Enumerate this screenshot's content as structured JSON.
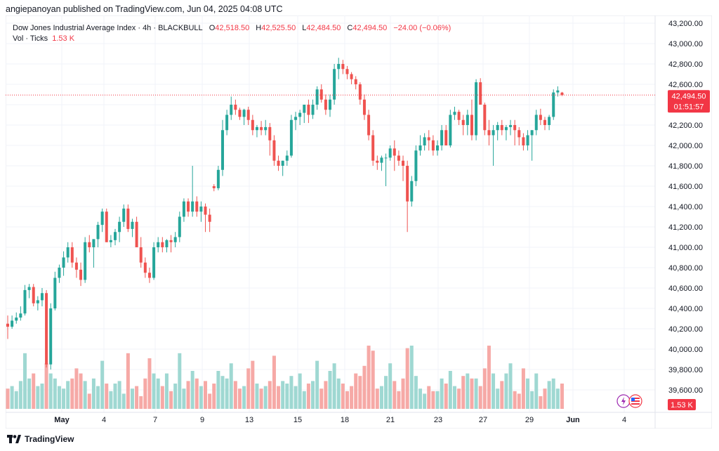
{
  "header": {
    "text": "angiepanoyan published on TradingView.com, Jun 04, 2025 04:08 UTC"
  },
  "legend": {
    "symbol": "Dow Jones Industrial Average Index · 4h · BLACKBULL",
    "o_label": "O",
    "o_value": "42,518.50",
    "h_label": "H",
    "h_value": "42,525.50",
    "l_label": "L",
    "l_value": "42,484.50",
    "c_label": "C",
    "c_value": "42,494.50",
    "change": "−24.00 (−0.06%)",
    "vol_label": "Vol · Ticks",
    "vol_value": "1.53 K"
  },
  "price_tag": {
    "value": "42,494.50",
    "timer": "01:51:57"
  },
  "vol_tag": "1.53 K",
  "footer": {
    "brand": "TradingView"
  },
  "colors": {
    "up": "#26a69a",
    "down": "#ef5350",
    "vol_up": "#9fd8d2",
    "vol_down": "#f6a9a6",
    "price_line": "#f23645"
  },
  "chart_data": {
    "type": "candlestick",
    "y_ticks": [
      "43,200.00",
      "43,000.00",
      "42,800.00",
      "42,600.00",
      "42,400.00",
      "42,200.00",
      "42,000.00",
      "41,800.00",
      "41,600.00",
      "41,400.00",
      "41,200.00",
      "41,000.00",
      "40,800.00",
      "40,600.00",
      "40,400.00",
      "40,200.00",
      "40,000.00",
      "39,800.00",
      "39,600.00"
    ],
    "ylim": [
      39500,
      43300
    ],
    "x_ticks": [
      "May",
      "4",
      "7",
      "9",
      "13",
      "15",
      "18",
      "21",
      "23",
      "27",
      "29",
      "Jun",
      "4"
    ],
    "last_price": 42494.5,
    "candles": [
      [
        40250,
        40330,
        40100,
        40220,
        40
      ],
      [
        40220,
        40330,
        40200,
        40280,
        45
      ],
      [
        40280,
        40360,
        40250,
        40310,
        35
      ],
      [
        40310,
        40420,
        40280,
        40350,
        55
      ],
      [
        40350,
        40630,
        40330,
        40580,
        110
      ],
      [
        40580,
        40640,
        40500,
        40610,
        60
      ],
      [
        40610,
        40640,
        40420,
        40450,
        70
      ],
      [
        40450,
        40520,
        40380,
        40480,
        45
      ],
      [
        40480,
        40600,
        40420,
        40550,
        50
      ],
      [
        40550,
        40580,
        39820,
        39850,
        90
      ],
      [
        39850,
        40450,
        39800,
        40400,
        70
      ],
      [
        40400,
        40760,
        40380,
        40700,
        60
      ],
      [
        40700,
        40830,
        40650,
        40800,
        45
      ],
      [
        40800,
        40960,
        40720,
        40900,
        40
      ],
      [
        40900,
        41050,
        40850,
        41000,
        55
      ],
      [
        41000,
        41050,
        40800,
        40850,
        60
      ],
      [
        40850,
        40900,
        40700,
        40780,
        80
      ],
      [
        40780,
        40850,
        40620,
        40680,
        70
      ],
      [
        40680,
        41100,
        40650,
        41050,
        55
      ],
      [
        41050,
        41120,
        40950,
        41000,
        30
      ],
      [
        41000,
        41080,
        40800,
        41080,
        60
      ],
      [
        41080,
        41250,
        41000,
        41220,
        45
      ],
      [
        41220,
        41380,
        41150,
        41350,
        95
      ],
      [
        41350,
        41380,
        41050,
        41050,
        50
      ],
      [
        41050,
        41120,
        41000,
        41070,
        35
      ],
      [
        41070,
        41180,
        41020,
        41150,
        50
      ],
      [
        41150,
        41300,
        41050,
        41250,
        55
      ],
      [
        41250,
        41420,
        41200,
        41380,
        30
      ],
      [
        41380,
        41420,
        41150,
        41180,
        110
      ],
      [
        41180,
        41280,
        41100,
        41250,
        40
      ],
      [
        41250,
        41300,
        41000,
        41000,
        45
      ],
      [
        41000,
        41100,
        40800,
        40850,
        25
      ],
      [
        40850,
        40900,
        40700,
        40750,
        60
      ],
      [
        40750,
        40800,
        40650,
        40700,
        100
      ],
      [
        40700,
        41050,
        40680,
        41000,
        70
      ],
      [
        41000,
        41100,
        40950,
        41050,
        60
      ],
      [
        41050,
        41100,
        40950,
        41000,
        45
      ],
      [
        41000,
        41080,
        40950,
        41070,
        70
      ],
      [
        41070,
        41120,
        40950,
        41050,
        35
      ],
      [
        41050,
        41150,
        41000,
        41100,
        50
      ],
      [
        41100,
        41350,
        41050,
        41300,
        110
      ],
      [
        41300,
        41480,
        41250,
        41450,
        40
      ],
      [
        41450,
        41480,
        41300,
        41350,
        55
      ],
      [
        41350,
        41800,
        41300,
        41450,
        75
      ],
      [
        41450,
        41500,
        41300,
        41350,
        60
      ],
      [
        41350,
        41450,
        41250,
        41400,
        45
      ],
      [
        41400,
        41430,
        41150,
        41320,
        55
      ],
      [
        41320,
        41380,
        41150,
        41250,
        30
      ],
      [
        41600,
        41620,
        41550,
        41580,
        50
      ],
      [
        41580,
        41800,
        41560,
        41760,
        75
      ],
      [
        41760,
        42250,
        41700,
        42150,
        65
      ],
      [
        42150,
        42350,
        42100,
        42300,
        60
      ],
      [
        42300,
        42480,
        42250,
        42400,
        90
      ],
      [
        42400,
        42450,
        42300,
        42350,
        55
      ],
      [
        42350,
        42370,
        42250,
        42280,
        40
      ],
      [
        42280,
        42360,
        42200,
        42350,
        45
      ],
      [
        42350,
        42380,
        42200,
        42250,
        80
      ],
      [
        42250,
        42300,
        42100,
        42150,
        95
      ],
      [
        42150,
        42200,
        42080,
        42180,
        50
      ],
      [
        42180,
        42240,
        42100,
        42150,
        40
      ],
      [
        42150,
        42250,
        42100,
        42180,
        45
      ],
      [
        42180,
        42220,
        41900,
        42050,
        55
      ],
      [
        42050,
        42100,
        41800,
        41850,
        105
      ],
      [
        41850,
        41900,
        41750,
        41800,
        45
      ],
      [
        41800,
        41850,
        41700,
        41850,
        55
      ],
      [
        41850,
        41950,
        41800,
        41900,
        50
      ],
      [
        41900,
        42300,
        41880,
        42250,
        65
      ],
      [
        42250,
        42330,
        42150,
        42280,
        45
      ],
      [
        42280,
        42350,
        42200,
        42320,
        70
      ],
      [
        42320,
        42400,
        42220,
        42400,
        35
      ],
      [
        42400,
        42450,
        42220,
        42300,
        50
      ],
      [
        42300,
        42450,
        42260,
        42400,
        55
      ],
      [
        42400,
        42580,
        42350,
        42550,
        95
      ],
      [
        42550,
        42600,
        42420,
        42450,
        40
      ],
      [
        42450,
        42500,
        42300,
        42350,
        55
      ],
      [
        42350,
        42500,
        42280,
        42450,
        75
      ],
      [
        42450,
        42800,
        42400,
        42750,
        90
      ],
      [
        42750,
        42860,
        42650,
        42800,
        60
      ],
      [
        42800,
        42840,
        42700,
        42750,
        50
      ],
      [
        42750,
        42780,
        42650,
        42700,
        35
      ],
      [
        42700,
        42720,
        42600,
        42650,
        45
      ],
      [
        42650,
        42680,
        42550,
        42600,
        70
      ],
      [
        42600,
        42620,
        42400,
        42450,
        65
      ],
      [
        42450,
        42500,
        42250,
        42300,
        85
      ],
      [
        42300,
        42350,
        42050,
        42100,
        125
      ],
      [
        42100,
        42150,
        41800,
        41850,
        115
      ],
      [
        41850,
        41900,
        41760,
        41830,
        40
      ],
      [
        41830,
        41900,
        41750,
        41880,
        45
      ],
      [
        41880,
        41920,
        41600,
        41880,
        65
      ],
      [
        41880,
        42000,
        41850,
        41970,
        90
      ],
      [
        41970,
        42050,
        41750,
        41900,
        55
      ],
      [
        41900,
        41950,
        41800,
        41850,
        35
      ],
      [
        41850,
        41900,
        41650,
        41800,
        60
      ],
      [
        41800,
        41850,
        41150,
        41450,
        120
      ],
      [
        41450,
        41700,
        41400,
        41650,
        125
      ],
      [
        41650,
        42000,
        41600,
        41950,
        65
      ],
      [
        41950,
        42100,
        41900,
        42000,
        40
      ],
      [
        42000,
        42120,
        41950,
        42080,
        30
      ],
      [
        42080,
        42150,
        41950,
        42050,
        45
      ],
      [
        42050,
        42100,
        41900,
        41950,
        35
      ],
      [
        41950,
        42050,
        41900,
        42000,
        35
      ],
      [
        42000,
        42200,
        41950,
        42150,
        60
      ],
      [
        42150,
        42200,
        42000,
        42000,
        50
      ],
      [
        42000,
        42350,
        41980,
        42300,
        75
      ],
      [
        42300,
        42380,
        42250,
        42330,
        45
      ],
      [
        42330,
        42350,
        42200,
        42250,
        40
      ],
      [
        42250,
        42300,
        42100,
        42200,
        65
      ],
      [
        42200,
        42350,
        42100,
        42300,
        70
      ],
      [
        42300,
        42450,
        42050,
        42100,
        60
      ],
      [
        42100,
        42650,
        42050,
        42620,
        60
      ],
      [
        42620,
        42660,
        42400,
        42400,
        45
      ],
      [
        42400,
        42420,
        42100,
        42150,
        80
      ],
      [
        42150,
        42250,
        42000,
        42100,
        125
      ],
      [
        42100,
        42200,
        41800,
        42150,
        70
      ],
      [
        42150,
        42230,
        42050,
        42200,
        40
      ],
      [
        42200,
        42250,
        42100,
        42150,
        55
      ],
      [
        42150,
        42200,
        42050,
        42180,
        70
      ],
      [
        42180,
        42250,
        42100,
        42200,
        90
      ],
      [
        42200,
        42250,
        42000,
        42150,
        35
      ],
      [
        42150,
        42180,
        42000,
        42080,
        30
      ],
      [
        42080,
        42120,
        41950,
        42000,
        80
      ],
      [
        42000,
        42150,
        41950,
        42100,
        60
      ],
      [
        42100,
        42150,
        41850,
        42150,
        35
      ],
      [
        42150,
        42350,
        42100,
        42300,
        70
      ],
      [
        42300,
        42360,
        42200,
        42250,
        25
      ],
      [
        42250,
        42280,
        42150,
        42200,
        40
      ],
      [
        42200,
        42300,
        42150,
        42280,
        55
      ],
      [
        42280,
        42550,
        42250,
        42520,
        60
      ],
      [
        42520,
        42580,
        42480,
        42540,
        40
      ],
      [
        42518.5,
        42525.5,
        42484.5,
        42494.5,
        50
      ]
    ]
  }
}
